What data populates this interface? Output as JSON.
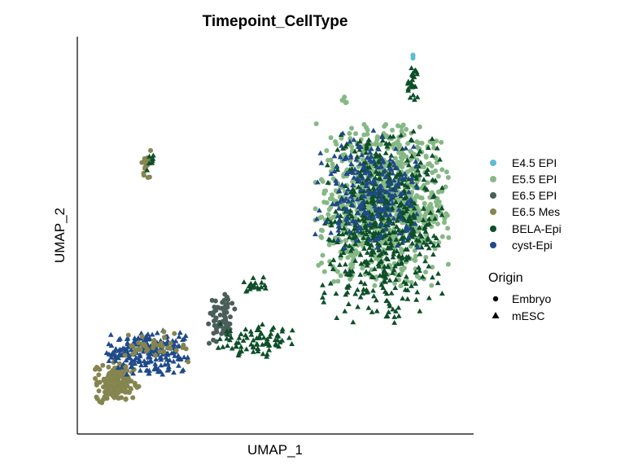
{
  "chart_data": {
    "type": "scatter",
    "title": "Timepoint_CellType",
    "xlabel": "UMAP_1",
    "ylabel": "UMAP_2",
    "xlim": [
      0,
      100
    ],
    "ylim": [
      0,
      100
    ],
    "grid": false,
    "legend_placement": "right",
    "color_legend": {
      "entries": [
        {
          "name": "E4.5 EPI",
          "color": "#5BBCD6"
        },
        {
          "name": "E5.5 EPI",
          "color": "#86B886"
        },
        {
          "name": "E6.5 EPI",
          "color": "#4A5E5A"
        },
        {
          "name": "E6.5 Mes",
          "color": "#858550"
        },
        {
          "name": "BELA-Epi",
          "color": "#0E4F2A"
        },
        {
          "name": "cyst-Epi",
          "color": "#1F4A8A"
        }
      ]
    },
    "shape_legend": {
      "title": "Origin",
      "entries": [
        {
          "name": "Embryo",
          "shape": "circle"
        },
        {
          "name": "mESC",
          "shape": "triangle"
        }
      ]
    },
    "clusters": [
      {
        "label": "E5.5 EPI",
        "shape": "circle",
        "cx": 80,
        "cy": 58,
        "rx": 18,
        "ry": 22,
        "n": 900
      },
      {
        "label": "BELA-Epi",
        "shape": "triangle",
        "cx": 80,
        "cy": 52,
        "rx": 16,
        "ry": 26,
        "n": 600
      },
      {
        "label": "cyst-Epi",
        "shape": "triangle",
        "cx": 76,
        "cy": 62,
        "rx": 14,
        "ry": 16,
        "n": 220
      },
      {
        "label": "E5.5 EPI",
        "shape": "circle",
        "cx": 70,
        "cy": 86,
        "rx": 1.2,
        "ry": 1.5,
        "n": 5
      },
      {
        "label": "BELA-Epi",
        "shape": "triangle",
        "cx": 88,
        "cy": 91,
        "rx": 1.5,
        "ry": 5,
        "n": 25
      },
      {
        "label": "E4.5 EPI",
        "shape": "circle",
        "cx": 88,
        "cy": 98,
        "rx": 0.5,
        "ry": 0.7,
        "n": 3
      },
      {
        "label": "E6.5 Mes",
        "shape": "circle",
        "cx": 17,
        "cy": 69,
        "rx": 1.6,
        "ry": 4,
        "n": 18
      },
      {
        "label": "BELA-Epi",
        "shape": "triangle",
        "cx": 18,
        "cy": 70,
        "rx": 1.5,
        "ry": 3,
        "n": 8
      },
      {
        "label": "E6.5 Mes",
        "shape": "circle",
        "cx": 9,
        "cy": 10,
        "rx": 6,
        "ry": 6,
        "n": 180
      },
      {
        "label": "cyst-Epi",
        "shape": "triangle",
        "cx": 17,
        "cy": 18,
        "rx": 11,
        "ry": 6,
        "n": 220
      },
      {
        "label": "E6.5 EPI",
        "shape": "circle",
        "cx": 37,
        "cy": 27,
        "rx": 4,
        "ry": 7,
        "n": 70
      },
      {
        "label": "BELA-Epi",
        "shape": "triangle",
        "cx": 46,
        "cy": 21,
        "rx": 10,
        "ry": 5,
        "n": 80
      },
      {
        "label": "BELA-Epi",
        "shape": "triangle",
        "cx": 46,
        "cy": 36,
        "rx": 3,
        "ry": 3,
        "n": 20
      },
      {
        "label": "E6.5 Mes",
        "shape": "circle",
        "cx": 19,
        "cy": 19,
        "rx": 10,
        "ry": 5,
        "n": 40
      }
    ]
  }
}
